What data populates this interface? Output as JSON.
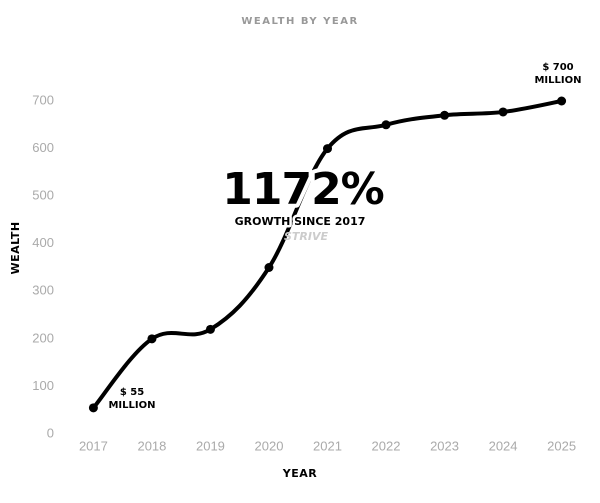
{
  "chart_data": {
    "type": "line",
    "title": "WEALTH BY YEAR",
    "x_label": "YEAR",
    "y_label": "WEALTH",
    "x": [
      2017,
      2018,
      2019,
      2020,
      2021,
      2022,
      2023,
      2024,
      2025
    ],
    "series": [
      {
        "name": "Wealth",
        "color": "#000000",
        "values": [
          55,
          200,
          220,
          350,
          600,
          650,
          670,
          677,
          700
        ]
      }
    ],
    "xlim": [
      2016.6,
      2025.4
    ],
    "xticks": [
      2017,
      2018,
      2019,
      2020,
      2021,
      2022,
      2023,
      2024,
      2025
    ],
    "ylim": [
      0,
      700
    ],
    "yticks": [
      0,
      100,
      200,
      300,
      400,
      500,
      600,
      700
    ],
    "grid": false,
    "annotations": [
      "$ 55",
      "MILLION",
      "$ 700",
      "MILLION",
      "1172%",
      "GROWTH SINCE 2017",
      "STRIVE"
    ]
  }
}
